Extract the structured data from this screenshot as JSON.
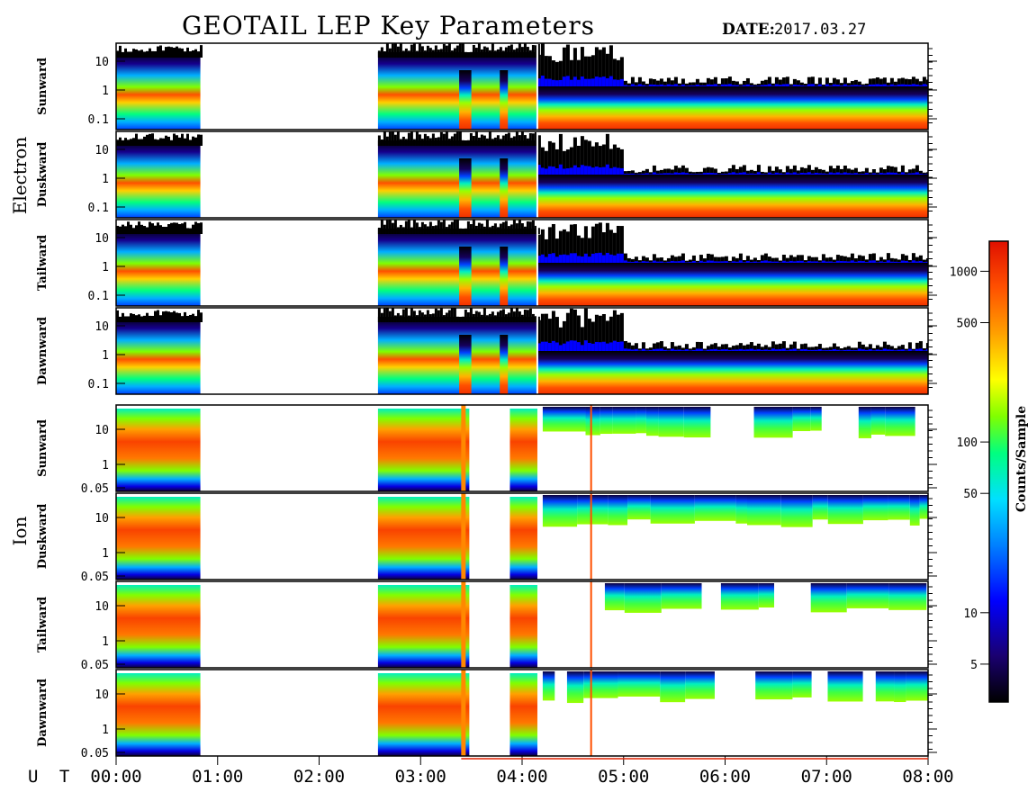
{
  "header": {
    "title": "GEOTAIL LEP Key Parameters",
    "date_label": "DATE:",
    "date_value": "2017.03.27"
  },
  "chart_data": {
    "type": "heatmap",
    "title": "GEOTAIL LEP Key Parameters",
    "date": "2017.03.27",
    "x_axis": {
      "label": "U T",
      "range_hours": [
        0,
        8
      ],
      "ticks": [
        "00:00",
        "01:00",
        "02:00",
        "03:00",
        "04:00",
        "05:00",
        "06:00",
        "07:00",
        "08:00"
      ]
    },
    "colorbar": {
      "label": "Counts/Sample",
      "scale": "log",
      "range": [
        3,
        1500
      ],
      "ticks": [
        "5",
        "10",
        "50",
        "100",
        "500",
        "1000"
      ],
      "colors": [
        "#000000",
        "#1a0070",
        "#0000ff",
        "#0080ff",
        "#00e0ff",
        "#00ff80",
        "#80ff00",
        "#ffff00",
        "#ffa000",
        "#ff5000",
        "#e01000"
      ]
    },
    "data_gaps_hours": [
      [
        0.83,
        2.58
      ]
    ],
    "groups": [
      {
        "name": "Electron",
        "panels": [
          {
            "name": "Sunward",
            "y_scale": "log",
            "y_ticks": [
              "10",
              "1",
              "0.1"
            ]
          },
          {
            "name": "Duskward",
            "y_scale": "log",
            "y_ticks": [
              "10",
              "1",
              "0.1"
            ]
          },
          {
            "name": "Tailward",
            "y_scale": "log",
            "y_ticks": [
              "10",
              "1",
              "0.1"
            ]
          },
          {
            "name": "Dawnward",
            "y_scale": "log",
            "y_ticks": [
              "10",
              "1",
              "0.1"
            ]
          }
        ]
      },
      {
        "name": "Ion",
        "panels": [
          {
            "name": "Sunward",
            "y_scale": "log",
            "y_ticks": [
              "10",
              "1",
              "0.05"
            ]
          },
          {
            "name": "Duskward",
            "y_scale": "log",
            "y_ticks": [
              "10",
              "1",
              "0.05"
            ]
          },
          {
            "name": "Tailward",
            "y_scale": "log",
            "y_ticks": [
              "10",
              "1",
              "0.05"
            ]
          },
          {
            "name": "Dawnward",
            "y_scale": "log",
            "y_ticks": [
              "10",
              "1",
              "0.05"
            ]
          }
        ]
      }
    ]
  }
}
